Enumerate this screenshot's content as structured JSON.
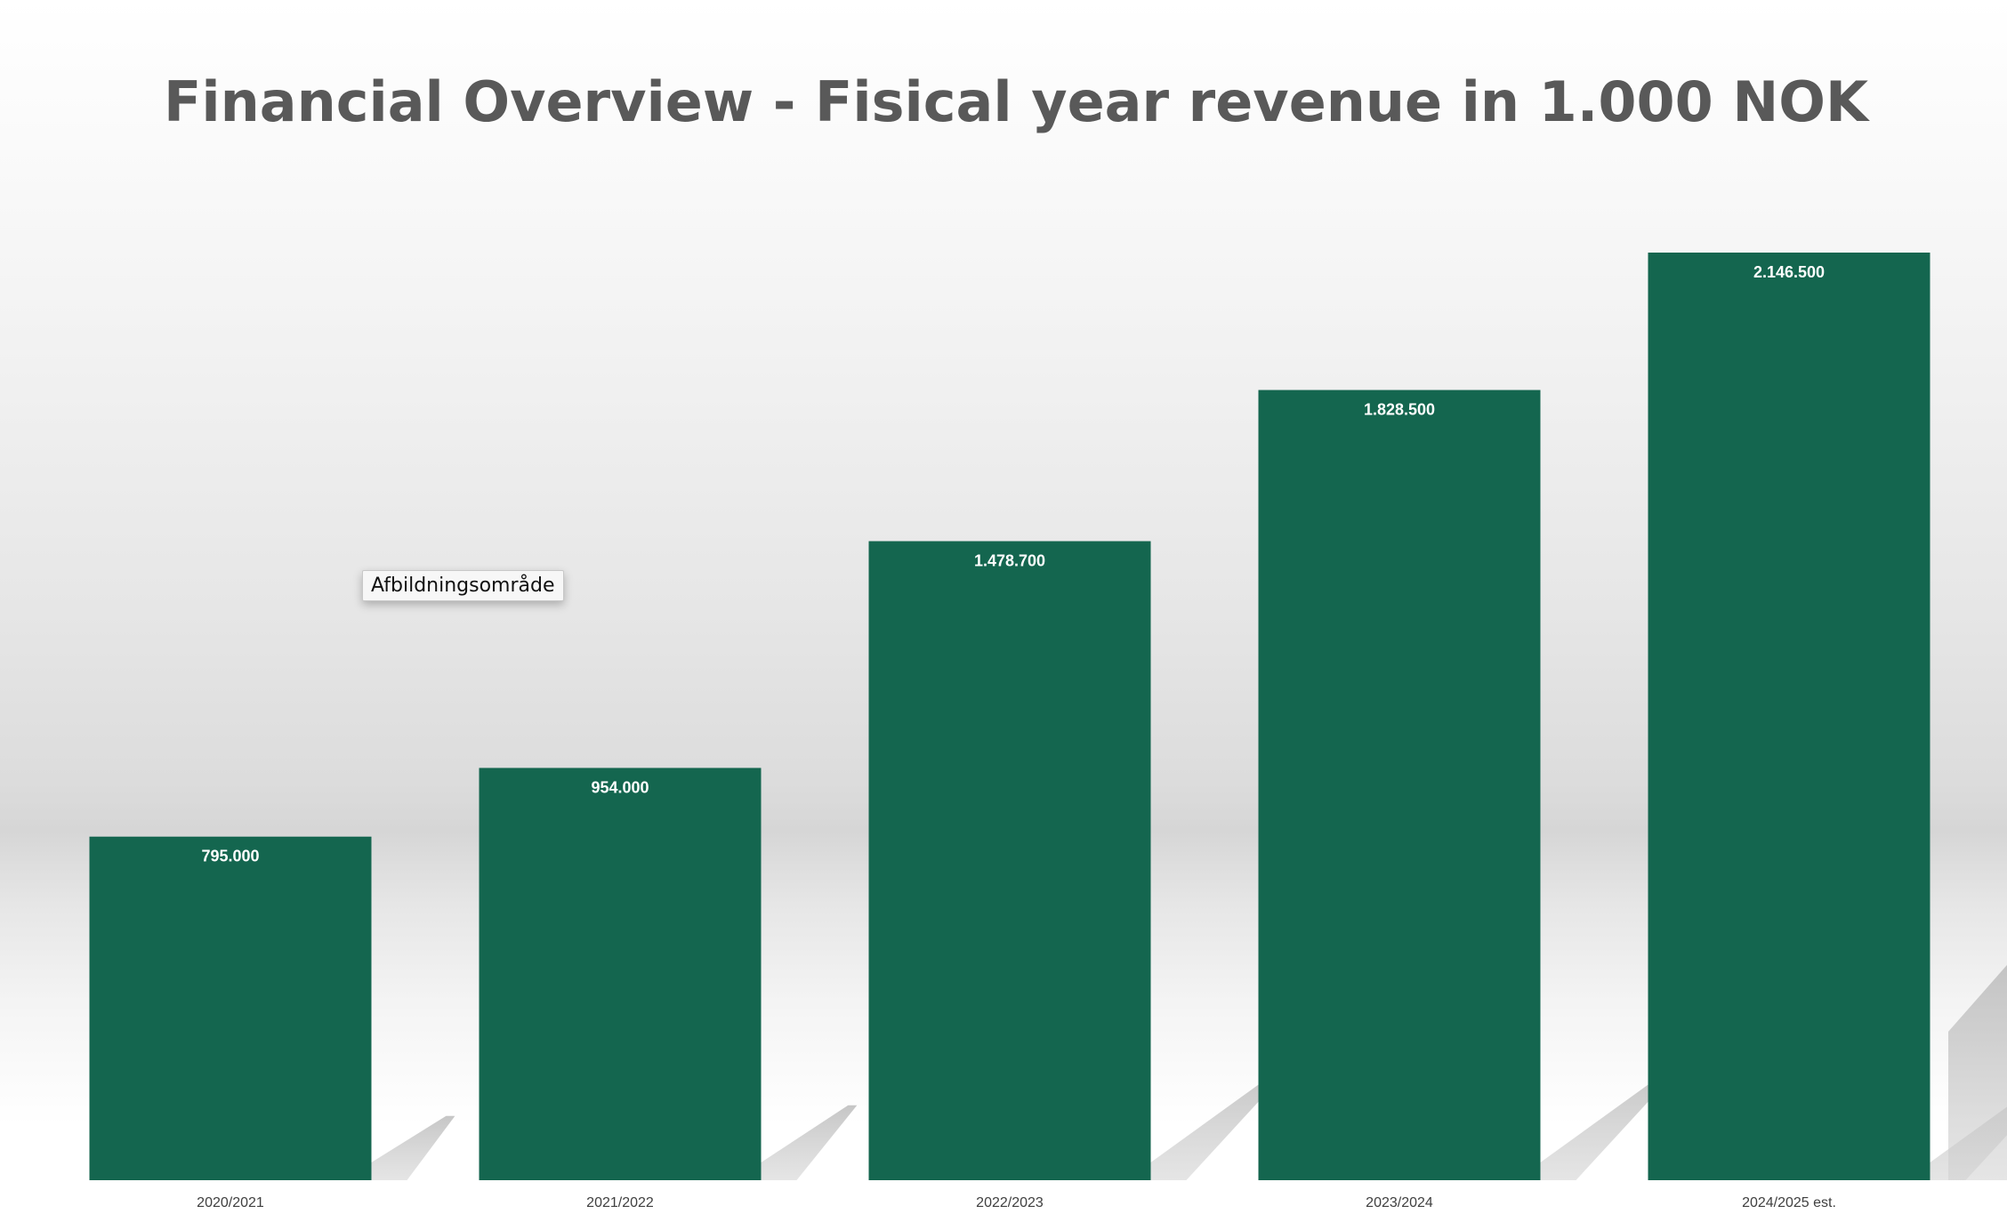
{
  "chart_data": {
    "type": "bar",
    "title": "Financial Overview - Fisical year revenue in 1.000 NOK",
    "categories": [
      "2020/2021",
      "2021/2022",
      "2022/2023",
      "2023/2024",
      "2024/2025 est."
    ],
    "series": [
      {
        "values": [
          795000,
          954000,
          1478700,
          1828500,
          2146500
        ],
        "value_labels": [
          "795.000",
          "954.000",
          "1.478.700",
          "1.828.500",
          "2.146.500"
        ]
      }
    ],
    "ylim": [
      0,
      2146500
    ],
    "grid": false,
    "legend": "none",
    "bar_color": "#14664f",
    "shadow_color": "#c8c8c8"
  },
  "tooltip": {
    "text": "Afbildningsområde"
  }
}
